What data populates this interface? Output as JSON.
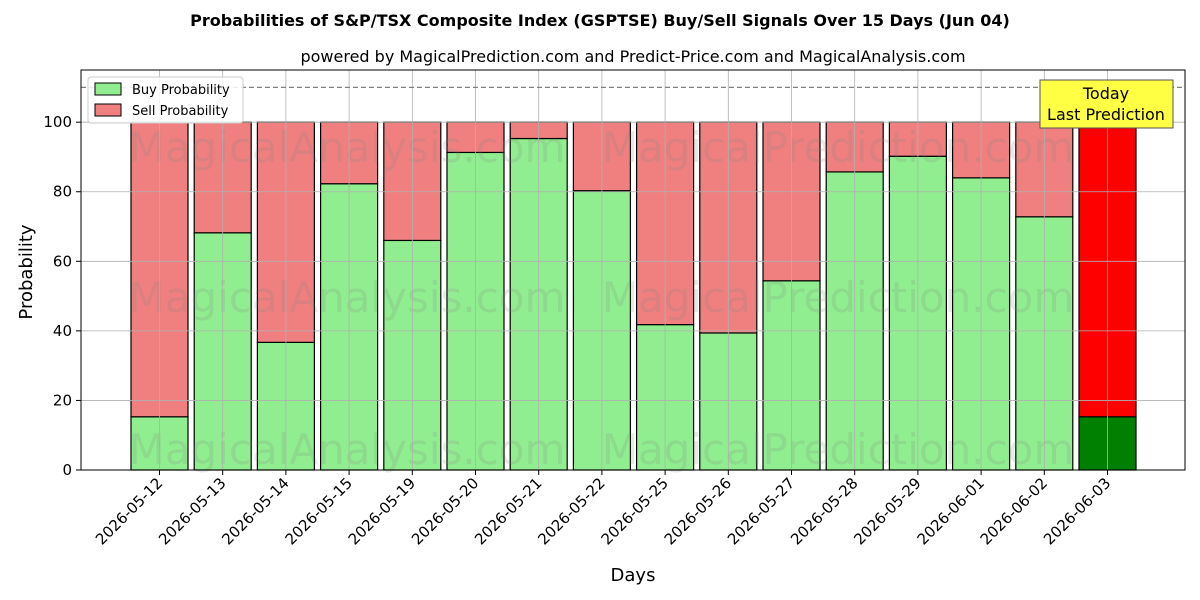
{
  "chart_data": {
    "type": "bar",
    "stacked": true,
    "title": "Probabilities of S&P/TSX Composite Index (GSPTSE) Buy/Sell Signals Over 15 Days (Jun 04)",
    "subtitle": "powered by MagicalPrediction.com and Predict-Price.com and MagicalAnalysis.com",
    "xlabel": "Days",
    "ylabel": "Probability",
    "ylim": [
      0,
      115
    ],
    "yticks": [
      0,
      20,
      40,
      60,
      80,
      100
    ],
    "reference_line": 110,
    "grid": true,
    "legend_position": "top-left",
    "categories": [
      "2026-05-12",
      "2026-05-13",
      "2026-05-14",
      "2026-05-15",
      "2026-05-19",
      "2026-05-20",
      "2026-05-21",
      "2026-05-22",
      "2026-05-25",
      "2026-05-26",
      "2026-05-27",
      "2026-05-28",
      "2026-05-29",
      "2026-06-01",
      "2026-06-02",
      "2026-06-03"
    ],
    "series": [
      {
        "name": "Buy Probability",
        "color": "#90ee90",
        "values": [
          15.3,
          68.2,
          36.7,
          82.3,
          66.0,
          91.3,
          95.3,
          80.3,
          41.8,
          39.4,
          54.4,
          85.7,
          90.2,
          84.0,
          72.8,
          15.3
        ]
      },
      {
        "name": "Sell Probability",
        "color": "#f08080",
        "values": [
          84.7,
          31.8,
          63.3,
          17.7,
          34.0,
          8.7,
          4.7,
          19.7,
          58.2,
          60.6,
          45.6,
          14.3,
          9.8,
          16.0,
          27.2,
          84.7
        ]
      }
    ],
    "highlight": {
      "index": 15,
      "buy_color": "#008000",
      "sell_color": "#ff0000"
    },
    "annotation": {
      "lines": [
        "Today",
        "Last Prediction"
      ],
      "bg_color": "#ffff44"
    },
    "watermarks": [
      "MagicalAnalysis.com",
      "MagicalPrediction.com"
    ]
  }
}
